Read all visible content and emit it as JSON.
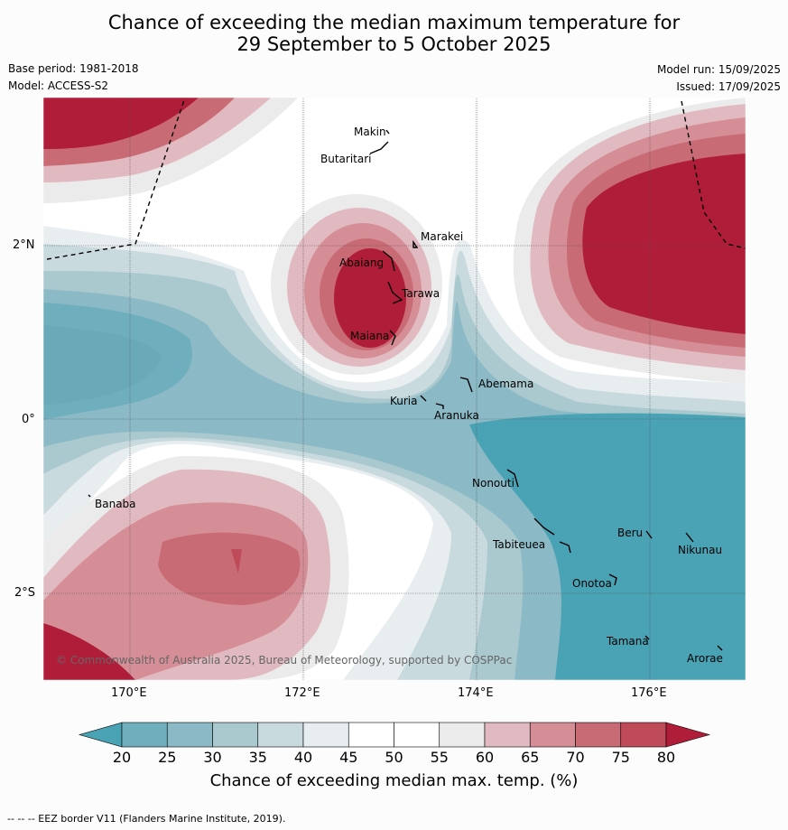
{
  "title": {
    "line1": "Chance of exceeding the median maximum temperature for",
    "line2": "29 September to 5 October 2025"
  },
  "meta": {
    "base_period": "Base period: 1981-2018",
    "model": "Model: ACCESS-S2",
    "model_run": "Model run: 15/09/2025",
    "issued": "Issued: 17/09/2025"
  },
  "axes": {
    "lat_labels": [
      "2°N",
      "0°",
      "2°S"
    ],
    "lon_labels": [
      "170°E",
      "172°E",
      "174°E",
      "176°E"
    ]
  },
  "places": [
    "Makin",
    "Butaritari",
    "Marakei",
    "Abaiang",
    "Tarawa",
    "Maiana",
    "Abemama",
    "Kuria",
    "Aranuka",
    "Nonouti",
    "Banaba",
    "Tabiteuea",
    "Beru",
    "Nikunau",
    "Onotoa",
    "Tamana",
    "Arorae"
  ],
  "copyright": "© Commonwealth of Australia 2025, Bureau of Meteorology, supported by COSPPac",
  "colorbar": {
    "ticks": [
      "20",
      "25",
      "30",
      "35",
      "40",
      "45",
      "50",
      "55",
      "60",
      "65",
      "70",
      "75",
      "80"
    ],
    "colors": [
      "#4aa3b4",
      "#6faebc",
      "#8bbac6",
      "#a9c9cf",
      "#c9dadf",
      "#e8eef0",
      "#ffffff",
      "#ffffff",
      "#ecebec",
      "#e0bac0",
      "#d58d96",
      "#c96b75",
      "#bf4a58",
      "#b01d39"
    ],
    "title": "Chance of exceeding median max. temp. (%)"
  },
  "footnote": "--  --  -- EEZ border V11 (Flanders Marine Institute, 2019)."
}
